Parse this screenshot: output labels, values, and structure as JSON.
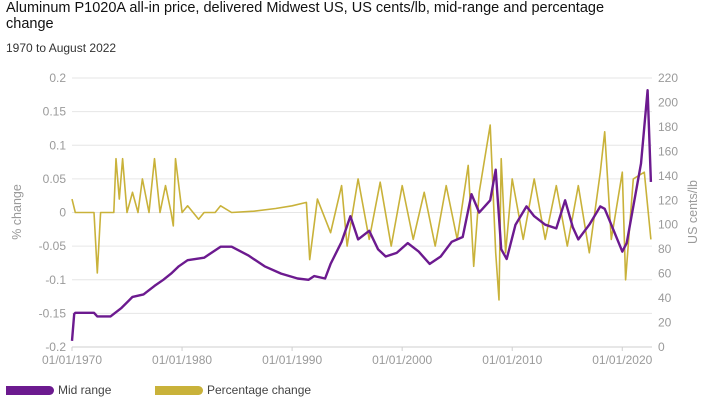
{
  "chart_data": {
    "type": "line",
    "title": "Aluminum P1020A all-in price, delivered Midwest US, US cents/lb, mid-range and percentage change",
    "subtitle": "1970 to August 2022",
    "xlabel": "",
    "ylabel_left": "% change",
    "ylabel_right": "US cents/lb",
    "x_ticks": [
      "01/01/1970",
      "01/01/1980",
      "01/01/1990",
      "01/01/2000",
      "01/01/2010",
      "01/01/2020"
    ],
    "x_tick_years": [
      1970,
      1980,
      1990,
      2000,
      2010,
      2020
    ],
    "xlim": [
      1970,
      2022.7
    ],
    "y_left_ticks": [
      "0.2",
      "0.15",
      "0.1",
      "0.05",
      "0",
      "-0.05",
      "-0.1",
      "-0.15",
      "-0.2"
    ],
    "ylim_left": [
      -0.2,
      0.2
    ],
    "y_right_ticks": [
      "220",
      "200",
      "180",
      "160",
      "140",
      "120",
      "100",
      "80",
      "60",
      "40",
      "20",
      "0"
    ],
    "ylim_right": [
      0,
      220
    ],
    "legend_position": "bottom",
    "series": [
      {
        "name": "Mid range",
        "axis": "right",
        "color": "#6c1a8f",
        "x": [
          1970.0,
          1970.2,
          1970.3,
          1972.0,
          1972.3,
          1973.5,
          1974.5,
          1975.5,
          1976.5,
          1977.5,
          1978.3,
          1979.0,
          1979.7,
          1980.5,
          1982.0,
          1983.5,
          1984.5,
          1986.0,
          1987.5,
          1989.0,
          1990.5,
          1991.5,
          1992.0,
          1993.0,
          1993.5,
          1994.5,
          1995.3,
          1996.0,
          1997.0,
          1997.8,
          1998.5,
          1999.5,
          2000.5,
          2001.5,
          2002.5,
          2003.5,
          2004.5,
          2005.5,
          2006.3,
          2007.0,
          2007.5,
          2008.0,
          2008.5,
          2009.0,
          2009.5,
          2010.3,
          2011.3,
          2012.0,
          2013.0,
          2014.0,
          2014.8,
          2015.5,
          2016.0,
          2017.0,
          2018.0,
          2018.4,
          2019.0,
          2020.0,
          2020.4,
          2021.0,
          2021.7,
          2022.0,
          2022.3,
          2022.6
        ],
        "values": [
          5,
          27,
          28,
          28,
          25,
          25,
          32,
          41,
          43,
          50,
          55,
          60,
          66,
          71,
          73,
          82,
          82,
          75,
          66,
          60,
          56,
          55,
          58,
          56,
          68,
          86,
          107,
          88,
          95,
          80,
          74,
          77,
          85,
          78,
          68,
          74,
          86,
          90,
          125,
          110,
          115,
          120,
          145,
          80,
          72,
          100,
          115,
          107,
          100,
          97,
          120,
          98,
          88,
          100,
          115,
          113,
          100,
          78,
          85,
          115,
          150,
          180,
          210,
          135
        ]
      },
      {
        "name": "Percentage change",
        "axis": "left",
        "color": "#c9b23a",
        "x": [
          1970.0,
          1970.3,
          1972.0,
          1972.3,
          1972.6,
          1973.8,
          1974.0,
          1974.3,
          1974.6,
          1975.0,
          1975.5,
          1976.0,
          1976.4,
          1977.0,
          1977.5,
          1978.0,
          1978.5,
          1979.0,
          1979.2,
          1979.4,
          1980.0,
          1980.5,
          1981.0,
          1981.5,
          1982.0,
          1983.0,
          1983.5,
          1984.5,
          1986.5,
          1988.5,
          1990.0,
          1991.3,
          1991.6,
          1992.3,
          1993.5,
          1994.5,
          1995.0,
          1996.0,
          1997.0,
          1998.0,
          1999.0,
          2000.0,
          2001.0,
          2002.0,
          2003.0,
          2004.0,
          2005.0,
          2006.0,
          2006.5,
          2007.0,
          2008.0,
          2008.5,
          2008.8,
          2009.0,
          2009.4,
          2010.0,
          2011.0,
          2012.0,
          2013.0,
          2014.0,
          2015.0,
          2016.0,
          2017.0,
          2018.0,
          2018.4,
          2019.0,
          2020.0,
          2020.3,
          2021.0,
          2022.0,
          2022.6
        ],
        "values": [
          0.02,
          0.0,
          0.0,
          -0.09,
          0.0,
          0.0,
          0.08,
          0.02,
          0.08,
          0.0,
          0.03,
          0.0,
          0.05,
          0.0,
          0.08,
          0.0,
          0.04,
          0.0,
          -0.02,
          0.08,
          0.0,
          0.01,
          0.0,
          -0.01,
          0.0,
          0.0,
          0.01,
          0.0,
          0.002,
          0.006,
          0.01,
          0.015,
          -0.07,
          0.02,
          -0.03,
          0.04,
          -0.05,
          0.05,
          -0.04,
          0.045,
          -0.05,
          0.04,
          -0.04,
          0.03,
          -0.05,
          0.04,
          -0.04,
          0.07,
          -0.08,
          0.03,
          0.13,
          -0.06,
          -0.13,
          0.08,
          -0.06,
          0.05,
          -0.04,
          0.05,
          -0.04,
          0.04,
          -0.05,
          0.04,
          -0.06,
          0.06,
          0.12,
          -0.04,
          0.06,
          -0.1,
          0.05,
          0.06,
          -0.04
        ]
      }
    ]
  }
}
